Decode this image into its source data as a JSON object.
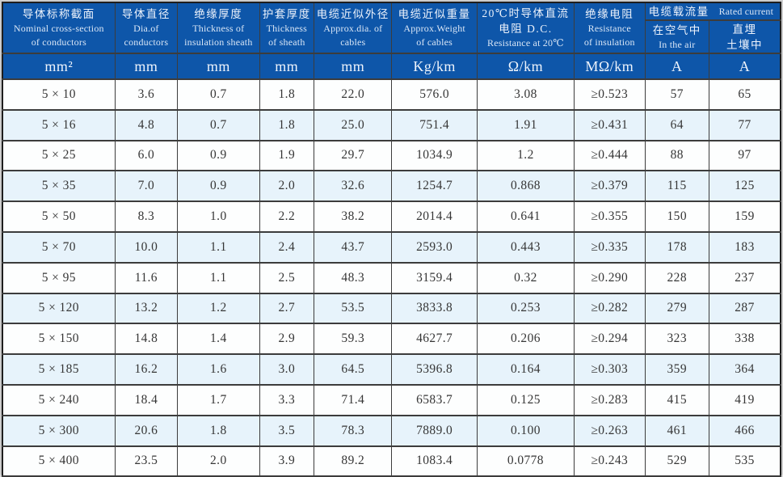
{
  "title": "cable-specification-table",
  "colors": {
    "header_bg": "#0e56a9",
    "header_text": "#e9f1fb",
    "row_alt_bg": "#e7f3fb",
    "row_bg": "#fdfefe",
    "grid_line": "#3c3c3c",
    "data_text": "#363636"
  },
  "header": {
    "columns": [
      {
        "lines": [
          "导体标称截面",
          "Nominal cross-section",
          "of conductors"
        ]
      },
      {
        "lines": [
          "导体直径",
          "Dia.of",
          "conductors"
        ]
      },
      {
        "lines": [
          "绝缘厚度",
          "Thickness of",
          "insulation sheath"
        ]
      },
      {
        "lines": [
          "护套厚度",
          "Thickness",
          "of sheath"
        ]
      },
      {
        "lines": [
          "电缆近似外径",
          "Approx.dia. of",
          "cables"
        ]
      },
      {
        "lines": [
          "电缆近似重量",
          "Approx.Weight",
          "of cables"
        ]
      },
      {
        "lines": [
          "20℃时导体直流",
          "电阻 D.C.",
          "Resistance at 20℃"
        ]
      },
      {
        "lines": [
          "绝缘电阻",
          "Resistance",
          "of insulation"
        ]
      }
    ],
    "current_group": {
      "cn": "电缆载流量",
      "en": "Rated current",
      "sub": [
        {
          "lines": [
            "在空气中",
            "In the air"
          ]
        },
        {
          "lines": [
            "直埋",
            "土壤中"
          ]
        }
      ]
    }
  },
  "units": [
    "mm²",
    "mm",
    "mm",
    "mm",
    "mm",
    "Kg/km",
    "Ω/km",
    "MΩ/km",
    "A",
    "A"
  ],
  "body": {
    "col_keys": [
      "size",
      "conductor-diameter",
      "insulation-thickness",
      "sheath-thickness",
      "approx-diameter",
      "approx-weight",
      "dc-resistance",
      "insulation-resistance",
      "current-in-air",
      "current-buried"
    ],
    "rows": [
      [
        "5 × 10",
        "3.6",
        "0.7",
        "1.8",
        "22.0",
        "576.0",
        "3.08",
        "≥0.523",
        "57",
        "65"
      ],
      [
        "5 × 16",
        "4.8",
        "0.7",
        "1.8",
        "25.0",
        "751.4",
        "1.91",
        "≥0.431",
        "64",
        "77"
      ],
      [
        "5 × 25",
        "6.0",
        "0.9",
        "1.9",
        "29.7",
        "1034.9",
        "1.2",
        "≥0.444",
        "88",
        "97"
      ],
      [
        "5 × 35",
        "7.0",
        "0.9",
        "2.0",
        "32.6",
        "1254.7",
        "0.868",
        "≥0.379",
        "115",
        "125"
      ],
      [
        "5 × 50",
        "8.3",
        "1.0",
        "2.2",
        "38.2",
        "2014.4",
        "0.641",
        "≥0.355",
        "150",
        "159"
      ],
      [
        "5 × 70",
        "10.0",
        "1.1",
        "2.4",
        "43.7",
        "2593.0",
        "0.443",
        "≥0.335",
        "178",
        "183"
      ],
      [
        "5 × 95",
        "11.6",
        "1.1",
        "2.5",
        "48.3",
        "3159.4",
        "0.32",
        "≥0.290",
        "228",
        "237"
      ],
      [
        "5 × 120",
        "13.2",
        "1.2",
        "2.7",
        "53.5",
        "3833.8",
        "0.253",
        "≥0.282",
        "279",
        "287"
      ],
      [
        "5 × 150",
        "14.8",
        "1.4",
        "2.9",
        "59.3",
        "4627.7",
        "0.206",
        "≥0.294",
        "323",
        "338"
      ],
      [
        "5 × 185",
        "16.2",
        "1.6",
        "3.0",
        "64.5",
        "5396.8",
        "0.164",
        "≥0.303",
        "359",
        "364"
      ],
      [
        "5 × 240",
        "18.4",
        "1.7",
        "3.3",
        "71.4",
        "6583.7",
        "0.125",
        "≥0.283",
        "415",
        "419"
      ],
      [
        "5 × 300",
        "20.6",
        "1.8",
        "3.5",
        "78.3",
        "7889.0",
        "0.100",
        "≥0.263",
        "461",
        "466"
      ],
      [
        "5 × 400",
        "23.5",
        "2.0",
        "3.9",
        "89.2",
        "1083.4",
        "0.0778",
        "≥0.243",
        "529",
        "535"
      ]
    ]
  }
}
